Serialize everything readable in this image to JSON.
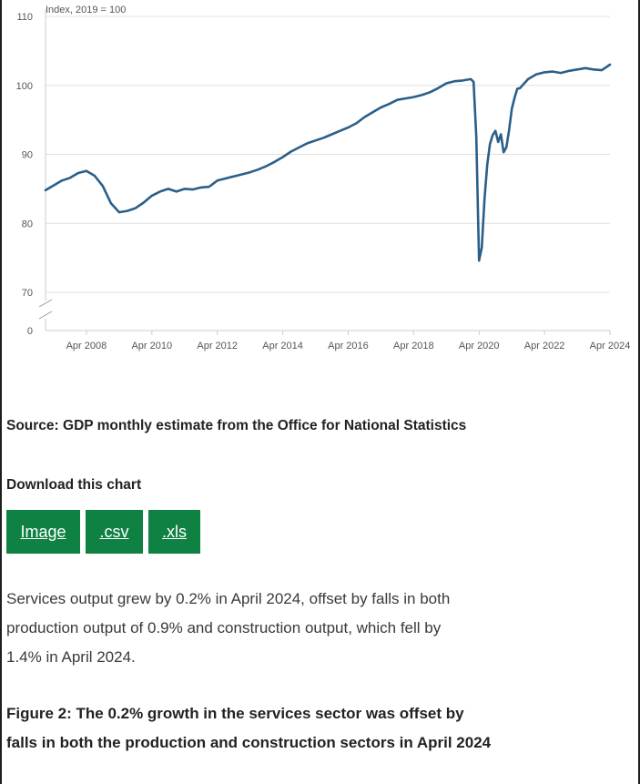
{
  "chart_data": {
    "type": "line",
    "unit_label": "Index, 2019 = 100",
    "ylim": [
      0,
      110
    ],
    "yticks": [
      0,
      70,
      80,
      90,
      100,
      110
    ],
    "axis_break": true,
    "grid": true,
    "line_color": "#2a5f8a",
    "x_tick_labels": [
      "Apr 2008",
      "Apr 2010",
      "Apr 2012",
      "Apr 2014",
      "Apr 2016",
      "Apr 2018",
      "Apr 2020",
      "Apr 2022",
      "Apr 2024"
    ],
    "x_range": [
      "Jan 2007",
      "Apr 2024"
    ],
    "series": [
      {
        "points": [
          [
            "Jan 2007",
            84.8
          ],
          [
            "Apr 2007",
            85.5
          ],
          [
            "Jul 2007",
            86.2
          ],
          [
            "Oct 2007",
            86.6
          ],
          [
            "Jan 2008",
            87.3
          ],
          [
            "Apr 2008",
            87.6
          ],
          [
            "Jul 2008",
            86.9
          ],
          [
            "Oct 2008",
            85.4
          ],
          [
            "Jan 2009",
            82.9
          ],
          [
            "Apr 2009",
            81.6
          ],
          [
            "Jul 2009",
            81.8
          ],
          [
            "Oct 2009",
            82.2
          ],
          [
            "Jan 2010",
            83.0
          ],
          [
            "Apr 2010",
            84.0
          ],
          [
            "Jul 2010",
            84.6
          ],
          [
            "Oct 2010",
            85.0
          ],
          [
            "Jan 2011",
            84.6
          ],
          [
            "Apr 2011",
            85.0
          ],
          [
            "Jul 2011",
            84.9
          ],
          [
            "Oct 2011",
            85.2
          ],
          [
            "Jan 2012",
            85.3
          ],
          [
            "Apr 2012",
            86.2
          ],
          [
            "Jul 2012",
            86.5
          ],
          [
            "Oct 2012",
            86.8
          ],
          [
            "Jan 2013",
            87.1
          ],
          [
            "Apr 2013",
            87.4
          ],
          [
            "Jul 2013",
            87.8
          ],
          [
            "Oct 2013",
            88.3
          ],
          [
            "Jan 2014",
            88.9
          ],
          [
            "Apr 2014",
            89.6
          ],
          [
            "Jul 2014",
            90.4
          ],
          [
            "Oct 2014",
            91.0
          ],
          [
            "Jan 2015",
            91.6
          ],
          [
            "Apr 2015",
            92.0
          ],
          [
            "Jul 2015",
            92.4
          ],
          [
            "Oct 2015",
            92.9
          ],
          [
            "Jan 2016",
            93.4
          ],
          [
            "Apr 2016",
            93.9
          ],
          [
            "Jul 2016",
            94.5
          ],
          [
            "Oct 2016",
            95.4
          ],
          [
            "Jan 2017",
            96.1
          ],
          [
            "Apr 2017",
            96.8
          ],
          [
            "Jul 2017",
            97.3
          ],
          [
            "Oct 2017",
            97.9
          ],
          [
            "Jan 2018",
            98.1
          ],
          [
            "Apr 2018",
            98.3
          ],
          [
            "Jul 2018",
            98.6
          ],
          [
            "Oct 2018",
            99.0
          ],
          [
            "Jan 2019",
            99.6
          ],
          [
            "Apr 2019",
            100.3
          ],
          [
            "Jul 2019",
            100.6
          ],
          [
            "Oct 2019",
            100.7
          ],
          [
            "Jan 2020",
            100.9
          ],
          [
            "Feb 2020",
            100.5
          ],
          [
            "Mar 2020",
            92.5
          ],
          [
            "Apr 2020",
            74.6
          ],
          [
            "May 2020",
            76.5
          ],
          [
            "Jun 2020",
            83.5
          ],
          [
            "Jul 2020",
            88.5
          ],
          [
            "Aug 2020",
            91.5
          ],
          [
            "Sep 2020",
            92.8
          ],
          [
            "Oct 2020",
            93.4
          ],
          [
            "Nov 2020",
            91.8
          ],
          [
            "Dec 2020",
            92.9
          ],
          [
            "Jan 2021",
            90.3
          ],
          [
            "Feb 2021",
            91.0
          ],
          [
            "Mar 2021",
            93.5
          ],
          [
            "Apr 2021",
            96.6
          ],
          [
            "May 2021",
            98.2
          ],
          [
            "Jun 2021",
            99.5
          ],
          [
            "Jul 2021",
            99.6
          ],
          [
            "Oct 2021",
            100.9
          ],
          [
            "Jan 2022",
            101.6
          ],
          [
            "Apr 2022",
            101.9
          ],
          [
            "Jul 2022",
            102.0
          ],
          [
            "Oct 2022",
            101.8
          ],
          [
            "Jan 2023",
            102.1
          ],
          [
            "Apr 2023",
            102.3
          ],
          [
            "Jul 2023",
            102.5
          ],
          [
            "Oct 2023",
            102.3
          ],
          [
            "Jan 2024",
            102.2
          ],
          [
            "Apr 2024",
            103.0
          ]
        ]
      }
    ]
  },
  "source_text": "Source: GDP monthly estimate from the Office for National Statistics",
  "download": {
    "label": "Download this chart",
    "image_label": "Image",
    "csv_label": ".csv",
    "xls_label": ".xls",
    "button_color": "#0f8243"
  },
  "paragraph": "Services output grew by 0.2% in April 2024, offset by falls in both production output of 0.9% and construction output, which fell by 1.4% in April 2024.",
  "figure_title": "Figure 2: The 0.2% growth in the services sector was offset by falls in both the production and construction sectors in April 2024"
}
